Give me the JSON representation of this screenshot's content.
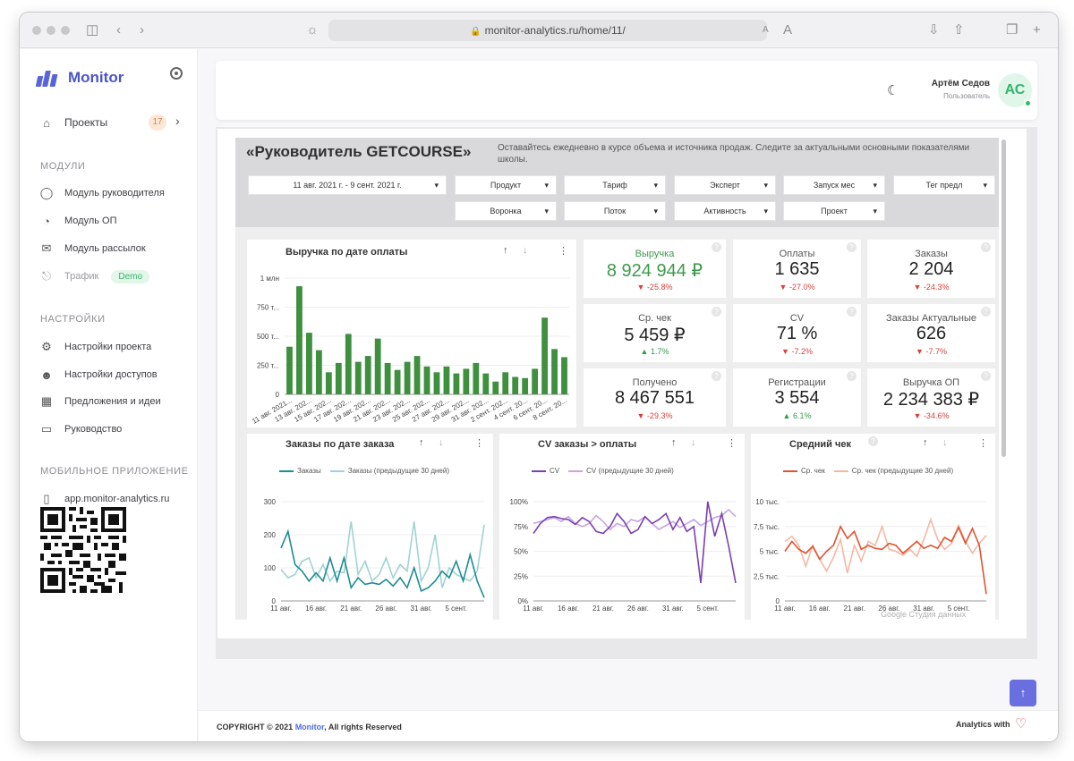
{
  "browser": {
    "url": "monitor-analytics.ru/home/11/"
  },
  "sidebar": {
    "brand": "Monitor",
    "projects_label": "Проекты",
    "projects_count": "17",
    "section_modules": "МОДУЛИ",
    "modules": [
      {
        "label": "Модуль руководителя",
        "icon": "user-icon"
      },
      {
        "label": "Модуль ОП",
        "icon": "pie-chart-icon"
      },
      {
        "label": "Модуль рассылок",
        "icon": "mail-icon"
      },
      {
        "label": "Трафик",
        "icon": "lock-icon",
        "badge": "Demo"
      }
    ],
    "section_settings": "НАСТРОЙКИ",
    "settings": [
      {
        "label": "Настройки проекта",
        "icon": "gear-icon"
      },
      {
        "label": "Настройки доступов",
        "icon": "users-icon"
      },
      {
        "label": "Предложения и идеи",
        "icon": "idea-icon"
      },
      {
        "label": "Руководство",
        "icon": "monitor-icon"
      }
    ],
    "section_mobile": "МОБИЛЬНОЕ ПРИЛОЖЕНИЕ",
    "mobile_link": "app.monitor-analytics.ru"
  },
  "header": {
    "user_name": "Артём Седов",
    "user_role": "Пользователь",
    "avatar_initials": "АС"
  },
  "report": {
    "title": "«Руководитель GETCOURSE»",
    "subtitle": "Оставайтесь ежедневно в курсе объема и источника продаж. Следите за актуальными основными показателями школы.",
    "date_range": "11 авг. 2021 г. - 9 сент. 2021 г.",
    "filters": [
      "Продукт",
      "Тариф",
      "Эксперт",
      "Запуск мес",
      "Тег предл",
      "Воронка",
      "Поток",
      "Активность",
      "Проект"
    ],
    "kpis": [
      {
        "label": "Выручка",
        "value": "8 924 944 ₽",
        "delta": "-25.8%",
        "dir": "down",
        "highlight": true
      },
      {
        "label": "Оплаты",
        "value": "1 635",
        "delta": "-27.0%",
        "dir": "down"
      },
      {
        "label": "Заказы",
        "value": "2 204",
        "delta": "-24.3%",
        "dir": "down"
      },
      {
        "label": "Ср. чек",
        "value": "5 459 ₽",
        "delta": "1.7%",
        "dir": "up"
      },
      {
        "label": "CV",
        "value": "71 %",
        "delta": "-7.2%",
        "dir": "down"
      },
      {
        "label": "Заказы Актуальные",
        "value": "626",
        "delta": "-7.7%",
        "dir": "down"
      },
      {
        "label": "Получено",
        "value": "8 467 551",
        "delta": "-29.3%",
        "dir": "down"
      },
      {
        "label": "Регистрации",
        "value": "3 554",
        "delta": "6.1%",
        "dir": "up"
      },
      {
        "label": "Выручка ОП",
        "value": "2 234 383 ₽",
        "delta": "-34.6%",
        "dir": "down"
      }
    ],
    "watermark": "Google Студия данных"
  },
  "chart_data": [
    {
      "type": "bar",
      "title": "Выручка по дате оплаты",
      "color": "#3e8f3e",
      "ylim": [
        0,
        1000000
      ],
      "yticks": [
        "0",
        "250 т...",
        "500 т...",
        "750 т...",
        "1 млн"
      ],
      "xtick_labels": [
        "11 авг. 2021...",
        "13 авг. 202...",
        "15 авг. 202...",
        "17 авг. 202...",
        "19 авг. 202...",
        "21 авг. 202...",
        "23 авг. 202...",
        "25 авг. 202...",
        "27 авг. 202...",
        "29 авг. 202...",
        "31 авг. 202...",
        "2 сент. 202...",
        "4 сент. 20...",
        "6 сент. 20...",
        "8 сент. 20..."
      ],
      "values": [
        410000,
        930000,
        530000,
        380000,
        190000,
        270000,
        520000,
        280000,
        330000,
        480000,
        270000,
        210000,
        280000,
        330000,
        240000,
        190000,
        240000,
        180000,
        220000,
        270000,
        180000,
        110000,
        190000,
        150000,
        140000,
        220000,
        660000,
        390000,
        320000
      ]
    },
    {
      "type": "line",
      "title": "Заказы по дате заказа",
      "ylim": [
        0,
        300
      ],
      "yticks": [
        "0",
        "100",
        "200",
        "300"
      ],
      "xticks": [
        "11 авг.",
        "16 авг.",
        "21 авг.",
        "26 авг.",
        "31 авг.",
        "5 сент."
      ],
      "series": [
        {
          "name": "Заказы",
          "color": "#1e8c92",
          "values": [
            160,
            210,
            110,
            90,
            60,
            85,
            60,
            130,
            60,
            130,
            40,
            70,
            50,
            55,
            50,
            65,
            45,
            70,
            40,
            100,
            30,
            40,
            60,
            90,
            70,
            120,
            60,
            140,
            60,
            10
          ]
        },
        {
          "name": "Заказы (предыдущие 30 дней)",
          "color": "#9fd3d3",
          "values": [
            95,
            70,
            80,
            120,
            130,
            70,
            110,
            60,
            90,
            85,
            240,
            80,
            120,
            60,
            80,
            130,
            70,
            110,
            90,
            240,
            60,
            100,
            200,
            40,
            100,
            80,
            70,
            60,
            90,
            230
          ]
        }
      ]
    },
    {
      "type": "line",
      "title": "CV заказы > оплаты",
      "ylim": [
        0,
        100
      ],
      "yticks": [
        "0%",
        "25%",
        "50%",
        "75%",
        "100%"
      ],
      "xticks": [
        "11 авг.",
        "16 авг.",
        "21 авг.",
        "26 авг.",
        "31 авг.",
        "5 сент."
      ],
      "series": [
        {
          "name": "CV",
          "color": "#7b3fb2",
          "values": [
            68,
            78,
            84,
            85,
            83,
            82,
            77,
            84,
            80,
            70,
            68,
            75,
            88,
            80,
            68,
            72,
            85,
            78,
            82,
            88,
            72,
            84,
            70,
            75,
            18,
            100,
            65,
            88,
            55,
            18
          ]
        },
        {
          "name": "CV (предыдущие 30 дней)",
          "color": "#c7a5e3",
          "values": [
            78,
            80,
            82,
            84,
            80,
            85,
            78,
            75,
            78,
            86,
            80,
            72,
            78,
            75,
            82,
            80,
            85,
            78,
            72,
            76,
            80,
            74,
            78,
            82,
            76,
            80,
            84,
            86,
            92,
            85
          ]
        }
      ]
    },
    {
      "type": "line",
      "title": "Средний чек",
      "ylim": [
        0,
        10000
      ],
      "yticks": [
        "0",
        "2,5 тыс.",
        "5 тыс.",
        "7,5 тыс.",
        "10 тыс."
      ],
      "xticks": [
        "11 авг.",
        "16 авг.",
        "21 авг.",
        "26 авг.",
        "31 авг.",
        "5 сент."
      ],
      "series": [
        {
          "name": "Ср. чек",
          "color": "#e0532e",
          "values": [
            5000,
            6000,
            5200,
            4800,
            5500,
            4200,
            5000,
            5600,
            7500,
            6300,
            7000,
            5200,
            5600,
            5300,
            5200,
            5800,
            5600,
            4800,
            5400,
            6000,
            5300,
            5600,
            5300,
            6400,
            6000,
            7400,
            5800,
            7300,
            5600,
            700
          ]
        },
        {
          "name": "Ср. чек (предыдущие 30 дней)",
          "color": "#f5b7a5",
          "values": [
            6000,
            6500,
            5600,
            3500,
            5600,
            4200,
            3000,
            4400,
            6200,
            2800,
            5600,
            4000,
            6000,
            5600,
            7500,
            5200,
            5000,
            4600,
            5200,
            4500,
            6200,
            8200,
            6200,
            5200,
            5800,
            7600,
            6000,
            4800,
            5800,
            6600
          ]
        }
      ]
    }
  ],
  "footer": {
    "copyright": "COPYRIGHT © 2021",
    "brand": "Monitor",
    "rights": ", All rights Reserved",
    "analytics": "Analytics with"
  },
  "colors": {
    "accent": "#5865d8",
    "positive": "#2e9e49",
    "negative": "#d9413a"
  }
}
